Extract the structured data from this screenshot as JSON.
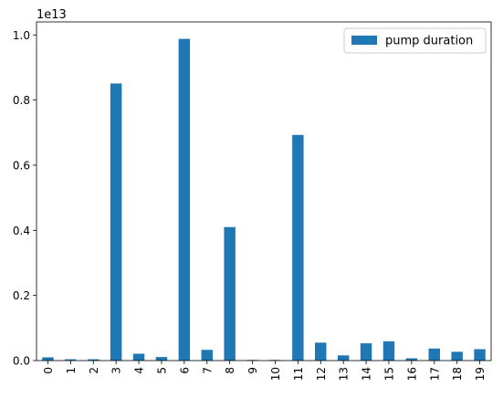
{
  "chart_data": {
    "type": "bar",
    "title": "",
    "xlabel": "",
    "ylabel": "",
    "offset_label": "1e13",
    "categories": [
      "0",
      "1",
      "2",
      "3",
      "4",
      "5",
      "6",
      "7",
      "8",
      "9",
      "10",
      "11",
      "12",
      "13",
      "14",
      "15",
      "16",
      "17",
      "18",
      "19"
    ],
    "series": [
      {
        "name": "pump duration",
        "color": "#1f77b4",
        "values": [
          0.01,
          0.004,
          0.004,
          0.851,
          0.021,
          0.011,
          0.988,
          0.033,
          0.41,
          0.002,
          0.002,
          0.693,
          0.055,
          0.016,
          0.053,
          0.059,
          0.007,
          0.037,
          0.027,
          0.035
        ]
      }
    ],
    "ylim": [
      0,
      1.04
    ],
    "yticks": [
      0.0,
      0.2,
      0.4,
      0.6,
      0.8,
      1.0
    ],
    "ytick_labels": [
      "0.0",
      "0.2",
      "0.4",
      "0.6",
      "0.8",
      "1.0"
    ],
    "xtick_rotation": "vertical",
    "grid": false,
    "legend": {
      "placement": "upper right",
      "entries": [
        "pump duration"
      ]
    }
  }
}
